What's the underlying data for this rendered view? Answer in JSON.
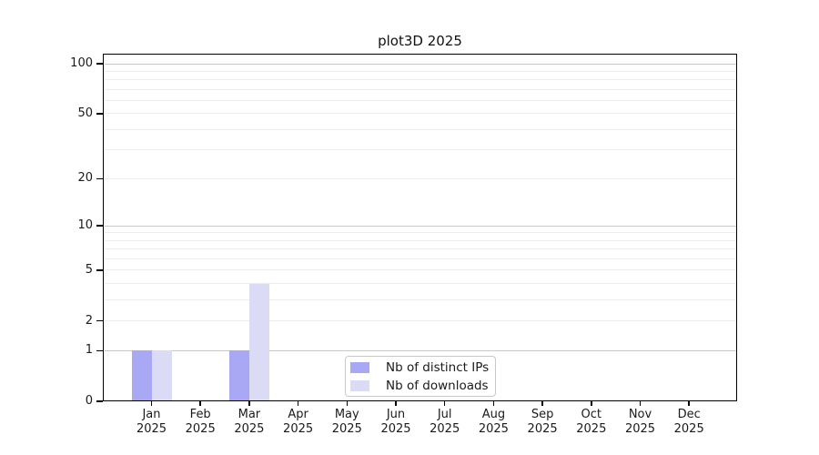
{
  "chart_data": {
    "type": "bar",
    "title": "plot3D 2025",
    "months": [
      "Jan",
      "Feb",
      "Mar",
      "Apr",
      "May",
      "Jun",
      "Jul",
      "Aug",
      "Sep",
      "Oct",
      "Nov",
      "Dec"
    ],
    "year_label": "2025",
    "series": [
      {
        "name": "Nb of distinct IPs",
        "color": "#a8a8f5",
        "values": [
          1,
          0,
          1,
          0,
          0,
          0,
          0,
          0,
          0,
          0,
          0,
          0
        ]
      },
      {
        "name": "Nb of downloads",
        "color": "#dbdbf6",
        "values": [
          1,
          0,
          4,
          0,
          0,
          0,
          0,
          0,
          0,
          0,
          0,
          0
        ]
      }
    ],
    "y_axis": {
      "scale": "log10(1+x)",
      "tick_labels": [
        "0",
        "1",
        "2",
        "5",
        "10",
        "20",
        "50",
        "100"
      ],
      "tick_values": [
        0,
        1,
        2,
        5,
        10,
        20,
        50,
        100
      ],
      "major_gridlines": [
        1,
        10,
        100
      ],
      "minor_gridlines": [
        2,
        3,
        4,
        5,
        6,
        7,
        8,
        9,
        20,
        30,
        40,
        50,
        60,
        70,
        80,
        90
      ],
      "max": 115
    },
    "grid": true,
    "legend_position": "bottom-center"
  }
}
